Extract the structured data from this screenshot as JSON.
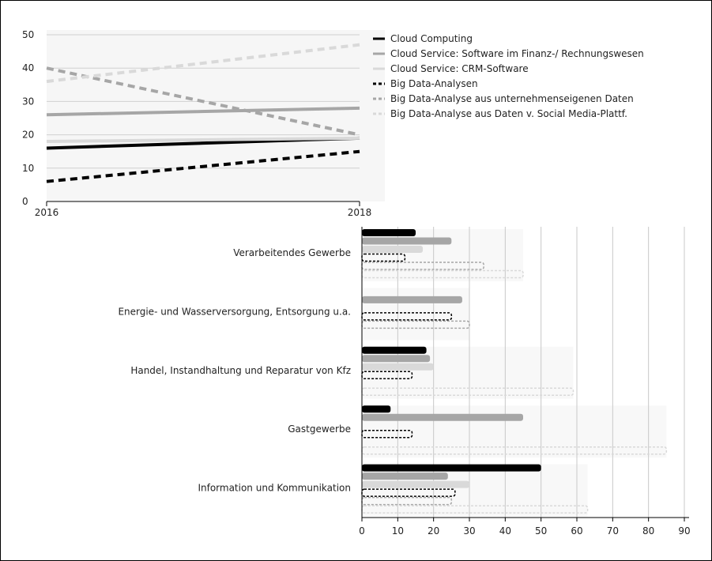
{
  "chart_data": [
    {
      "type": "line",
      "x": [
        "2016",
        "2018"
      ],
      "ylim": [
        0,
        50
      ],
      "yticks": [
        0,
        10,
        20,
        30,
        40,
        50
      ],
      "legend_position": "right",
      "series": [
        {
          "name": "Cloud Computing",
          "values": [
            16,
            19
          ],
          "color": "#000000",
          "style": "solid"
        },
        {
          "name": "Cloud Service: Software im Finanz-/ Rechnungswesen",
          "values": [
            26,
            28
          ],
          "color": "#a6a6a6",
          "style": "solid"
        },
        {
          "name": "Cloud Service: CRM-Software",
          "values": [
            18,
            19
          ],
          "color": "#d9d9d9",
          "style": "solid"
        },
        {
          "name": "Big Data-Analysen",
          "values": [
            6,
            15
          ],
          "color": "#000000",
          "style": "dashed"
        },
        {
          "name": "Big Data-Analyse aus unternehmenseigenen Daten",
          "values": [
            40,
            20
          ],
          "color": "#a6a6a6",
          "style": "dashed"
        },
        {
          "name": "Big Data-Analyse aus Daten v. Social Media-Plattf.",
          "values": [
            36,
            47
          ],
          "color": "#d9d9d9",
          "style": "dashed"
        }
      ]
    },
    {
      "type": "bar",
      "orientation": "horizontal",
      "xlim": [
        0,
        90
      ],
      "xticks": [
        0,
        10,
        20,
        30,
        40,
        50,
        60,
        70,
        80,
        90
      ],
      "grid": true,
      "categories": [
        "Verarbeitendes Gewerbe",
        "Energie- und Wasserversorgung, Entsorgung u.a.",
        "Handel, Instandhaltung und Reparatur von Kfz",
        "Gastgewerbe",
        "Information und Kommunikation"
      ],
      "series": [
        {
          "name": "Cloud Computing",
          "values": [
            15,
            0,
            18,
            8,
            50
          ],
          "color": "#000000",
          "style": "solid"
        },
        {
          "name": "Cloud Service: Software im Finanz-/ Rechnungswesen",
          "values": [
            25,
            28,
            19,
            45,
            24
          ],
          "color": "#a6a6a6",
          "style": "solid"
        },
        {
          "name": "Cloud Service: CRM-Software",
          "values": [
            17,
            0,
            20,
            0,
            30
          ],
          "color": "#d9d9d9",
          "style": "solid"
        },
        {
          "name": "Big Data-Analysen",
          "values": [
            12,
            25,
            14,
            14,
            26
          ],
          "color": "#000000",
          "style": "dashed"
        },
        {
          "name": "Big Data-Analyse aus unternehmenseigenen Daten",
          "values": [
            34,
            30,
            0,
            0,
            25
          ],
          "color": "#a6a6a6",
          "style": "dashed"
        },
        {
          "name": "Big Data-Analyse aus Daten v. Social Media-Plattf.",
          "values": [
            45,
            0,
            59,
            85,
            63
          ],
          "color": "#d9d9d9",
          "style": "dashed"
        }
      ]
    }
  ]
}
